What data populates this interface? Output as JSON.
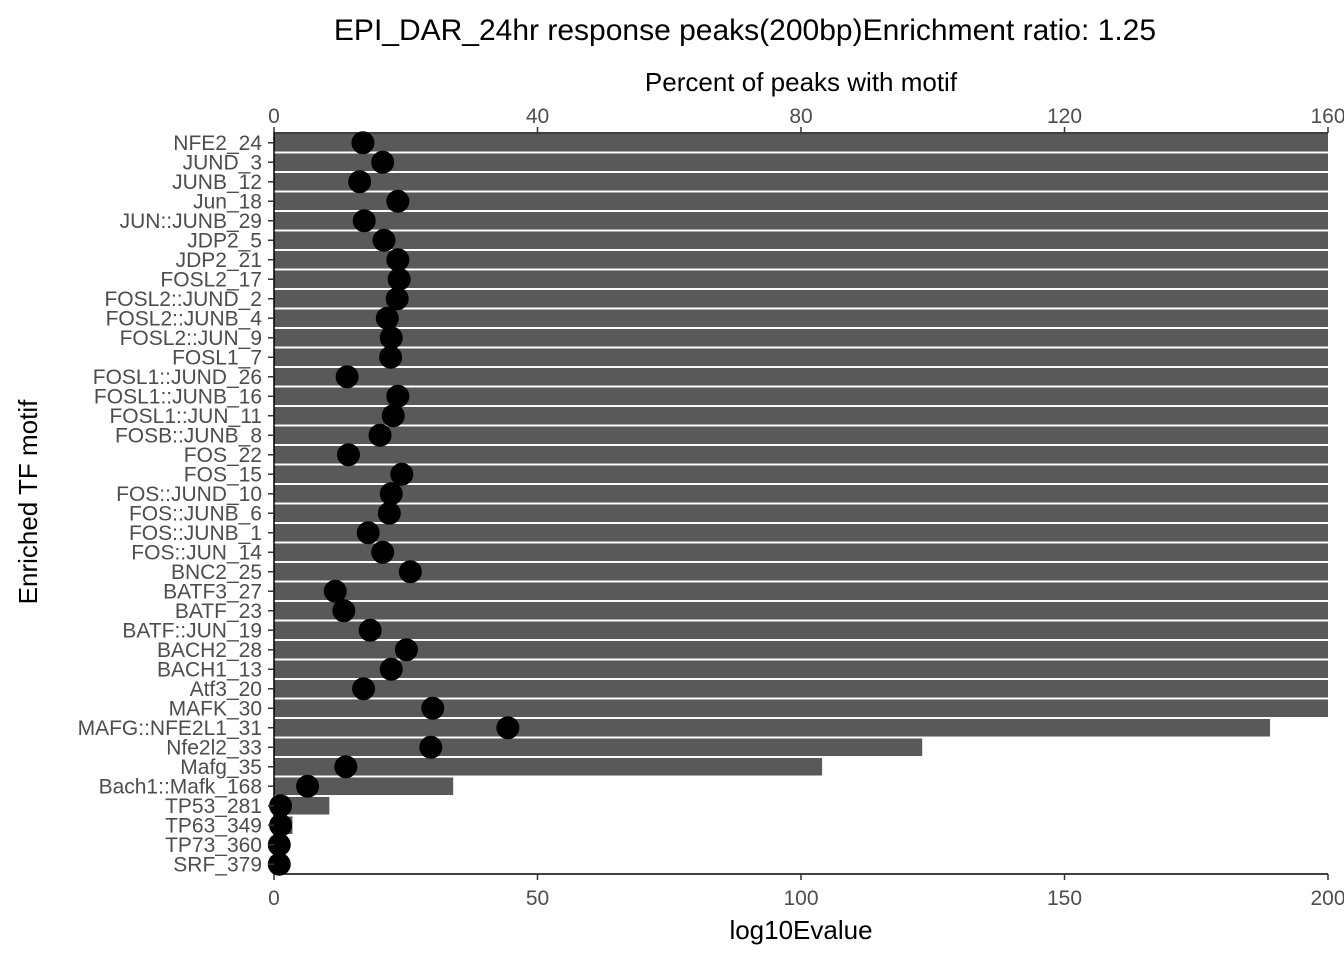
{
  "chart_data": {
    "type": "bar",
    "title": "EPI_DAR_24hr response peaks(200bp)Enrichment ratio: 1.25",
    "xlabel": "log10Evalue",
    "ylabel": "Enriched TF motif",
    "secondary_xlabel": "Percent of peaks with motif",
    "xlim": [
      0,
      200
    ],
    "secondary_xlim": [
      0,
      160
    ],
    "x_ticks": [
      "0",
      "50",
      "100",
      "150",
      "200"
    ],
    "secondary_x_ticks": [
      "0",
      "40",
      "80",
      "120",
      "160"
    ],
    "grid": false,
    "legend": "none",
    "colors": {
      "bar": "#595959",
      "point": "#000000",
      "axis": "#000000",
      "tick_label": "#4d4d4d"
    },
    "categories": [
      "NFE2_24",
      "JUND_3",
      "JUNB_12",
      "Jun_18",
      "JUN::JUNB_29",
      "JDP2_5",
      "JDP2_21",
      "FOSL2_17",
      "FOSL2::JUND_2",
      "FOSL2::JUNB_4",
      "FOSL2::JUN_9",
      "FOSL1_7",
      "FOSL1::JUND_26",
      "FOSL1::JUNB_16",
      "FOSL1::JUN_11",
      "FOSB::JUNB_8",
      "FOS_22",
      "FOS_15",
      "FOS::JUND_10",
      "FOS::JUNB_6",
      "FOS::JUNB_1",
      "FOS::JUN_14",
      "BNC2_25",
      "BATF3_27",
      "BATF_23",
      "BATF::JUN_19",
      "BACH2_28",
      "BACH1_13",
      "Atf3_20",
      "MAFK_30",
      "MAFG::NFE2L1_31",
      "Nfe2l2_33",
      "Mafg_35",
      "Bach1::Mafk_168",
      "TP53_281",
      "TP63_349",
      "TP73_360",
      "SRF_379"
    ],
    "series": [
      {
        "type": "bar",
        "axis": "bottom",
        "values": [
          200,
          200,
          200,
          200,
          200,
          200,
          200,
          200,
          200,
          200,
          200,
          200,
          200,
          200,
          200,
          200,
          200,
          200,
          200,
          200,
          200,
          200,
          200,
          200,
          200,
          200,
          200,
          200,
          200,
          200,
          189,
          123,
          104,
          34,
          10.5,
          3.5,
          1,
          0.5
        ]
      },
      {
        "type": "point",
        "axis": "top",
        "values": [
          13.5,
          16.5,
          13.0,
          18.8,
          13.7,
          16.7,
          18.8,
          19.0,
          18.7,
          17.2,
          17.8,
          17.7,
          11.1,
          18.8,
          18.1,
          16.1,
          11.3,
          19.4,
          17.8,
          17.5,
          14.3,
          16.5,
          20.7,
          9.3,
          10.6,
          14.6,
          20.1,
          17.8,
          13.6,
          24.1,
          35.5,
          23.8,
          10.9,
          5.1,
          1.0,
          1.0,
          0.8,
          0.8
        ]
      }
    ]
  }
}
